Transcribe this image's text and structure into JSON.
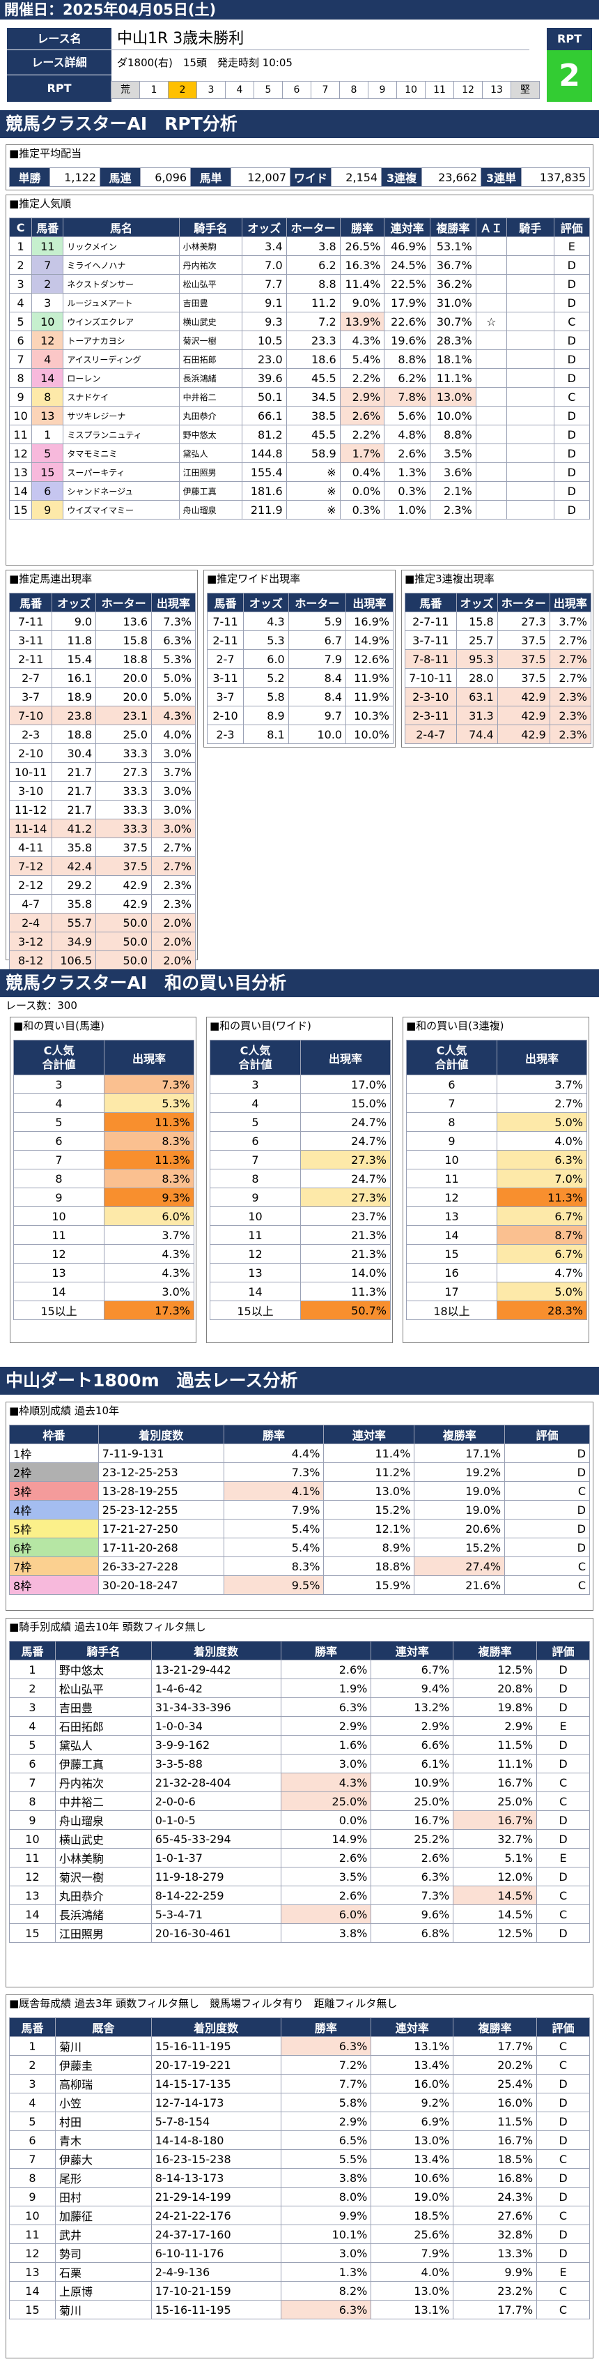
{
  "page": {
    "date": "開催日：2025年04月05日(土)"
  },
  "race": {
    "name_label": "レース名",
    "name": "中山1R 3歳未勝利",
    "detail_label": "レース詳細",
    "detail": "ダ1800(右)　15頭　発走時刻 10:05",
    "rpt_label": "RPT",
    "rpt_header": "RPT",
    "rpt_value": "2",
    "rpt_scale": [
      "荒",
      "1",
      "2",
      "3",
      "4",
      "5",
      "6",
      "7",
      "8",
      "9",
      "10",
      "11",
      "12",
      "13",
      "堅"
    ]
  },
  "sec1": {
    "title": "競馬クラスターAI　RPT分析",
    "avg": {
      "title": "■推定平均配当",
      "items": [
        {
          "k": "単勝",
          "v": "1,122"
        },
        {
          "k": "馬連",
          "v": "6,096"
        },
        {
          "k": "馬単",
          "v": "12,007"
        },
        {
          "k": "ワイド",
          "v": "2,154"
        },
        {
          "k": "3連複",
          "v": "23,662"
        },
        {
          "k": "3連単",
          "v": "137,835"
        }
      ]
    },
    "pop": {
      "title": "■推定人気順",
      "headers": [
        "C",
        "馬番",
        "馬名",
        "騎手名",
        "オッズ",
        "ホーター",
        "勝率",
        "連対率",
        "複勝率",
        "ＡＩ",
        "騎手",
        "評価"
      ],
      "rows": [
        [
          "1",
          "11",
          "リックメイン",
          "小林美駒",
          "3.4",
          "3.8",
          "26.5%",
          "46.9%",
          "53.1%",
          "",
          "",
          "E"
        ],
        [
          "2",
          "7",
          "ミライヘノハナ",
          "丹内祐次",
          "7.0",
          "6.2",
          "16.3%",
          "24.5%",
          "36.7%",
          "",
          "",
          "D"
        ],
        [
          "3",
          "2",
          "ネクストダンサー",
          "松山弘平",
          "7.7",
          "8.8",
          "11.4%",
          "22.5%",
          "36.2%",
          "",
          "",
          "D"
        ],
        [
          "4",
          "3",
          "ルージュメアート",
          "吉田豊",
          "9.1",
          "11.2",
          "9.0%",
          "17.9%",
          "31.0%",
          "",
          "",
          "D"
        ],
        [
          "5",
          "10",
          "ウインズエクレア",
          "横山武史",
          "9.3",
          "7.2",
          "13.9%",
          "22.6%",
          "30.7%",
          "☆",
          "",
          "C"
        ],
        [
          "6",
          "12",
          "トーアナカヨシ",
          "菊沢一樹",
          "10.5",
          "23.3",
          "4.3%",
          "19.6%",
          "28.3%",
          "",
          "",
          "D"
        ],
        [
          "7",
          "4",
          "アイスリーディング",
          "石田拓郎",
          "23.0",
          "18.6",
          "5.4%",
          "8.8%",
          "18.1%",
          "",
          "",
          "D"
        ],
        [
          "8",
          "14",
          "ローレン",
          "長浜鴻緒",
          "39.6",
          "45.5",
          "2.2%",
          "6.2%",
          "11.1%",
          "",
          "",
          "D"
        ],
        [
          "9",
          "8",
          "スナドケイ",
          "中井裕二",
          "50.1",
          "34.5",
          "2.9%",
          "7.8%",
          "13.0%",
          "",
          "",
          "C"
        ],
        [
          "10",
          "13",
          "サツキレジーナ",
          "丸田恭介",
          "66.1",
          "38.5",
          "2.6%",
          "5.6%",
          "10.0%",
          "",
          "",
          "D"
        ],
        [
          "11",
          "1",
          "ミスプランニュティ",
          "野中悠太",
          "81.2",
          "45.5",
          "2.2%",
          "4.8%",
          "8.8%",
          "",
          "",
          "D"
        ],
        [
          "12",
          "5",
          "タマモミニミ",
          "黛弘人",
          "144.8",
          "58.9",
          "1.7%",
          "2.6%",
          "3.5%",
          "",
          "",
          "D"
        ],
        [
          "13",
          "15",
          "スーパーキティ",
          "江田照男",
          "155.4",
          "※",
          "0.4%",
          "1.3%",
          "3.6%",
          "",
          "",
          "D"
        ],
        [
          "14",
          "6",
          "シャンドネージュ",
          "伊藤工真",
          "181.6",
          "※",
          "0.0%",
          "0.3%",
          "2.1%",
          "",
          "",
          "D"
        ],
        [
          "15",
          "9",
          "ウイズマイマミー",
          "舟山瑠泉",
          "211.9",
          "※",
          "0.3%",
          "1.0%",
          "2.3%",
          "",
          "",
          "D"
        ]
      ]
    },
    "umaren": {
      "title": "■推定馬連出現率",
      "headers": [
        "馬番",
        "オッズ",
        "ホーター",
        "出現率"
      ],
      "rows": [
        [
          "7-11",
          "9.0",
          "13.6",
          "7.3%"
        ],
        [
          "3-11",
          "11.8",
          "15.8",
          "6.3%"
        ],
        [
          "2-11",
          "15.4",
          "18.8",
          "5.3%"
        ],
        [
          "2-7",
          "16.1",
          "20.0",
          "5.0%"
        ],
        [
          "3-7",
          "18.9",
          "20.0",
          "5.0%"
        ],
        [
          "7-10",
          "23.8",
          "23.1",
          "4.3%"
        ],
        [
          "2-3",
          "18.8",
          "25.0",
          "4.0%"
        ],
        [
          "2-10",
          "30.4",
          "33.3",
          "3.0%"
        ],
        [
          "10-11",
          "21.7",
          "27.3",
          "3.7%"
        ],
        [
          "3-10",
          "21.7",
          "33.3",
          "3.0%"
        ],
        [
          "11-12",
          "21.7",
          "33.3",
          "3.0%"
        ],
        [
          "11-14",
          "41.2",
          "33.3",
          "3.0%"
        ],
        [
          "4-11",
          "35.8",
          "37.5",
          "2.7%"
        ],
        [
          "7-12",
          "42.4",
          "37.5",
          "2.7%"
        ],
        [
          "2-12",
          "29.2",
          "42.9",
          "2.3%"
        ],
        [
          "4-7",
          "35.8",
          "42.9",
          "2.3%"
        ],
        [
          "2-4",
          "55.7",
          "50.0",
          "2.0%"
        ],
        [
          "3-12",
          "34.9",
          "50.0",
          "2.0%"
        ],
        [
          "8-12",
          "106.5",
          "50.0",
          "2.0%"
        ]
      ]
    },
    "wide": {
      "title": "■推定ワイド出現率",
      "headers": [
        "馬番",
        "オッズ",
        "ホーター",
        "出現率"
      ],
      "rows": [
        [
          "7-11",
          "4.3",
          "5.9",
          "16.9%"
        ],
        [
          "2-11",
          "5.3",
          "6.7",
          "14.9%"
        ],
        [
          "2-7",
          "6.0",
          "7.9",
          "12.6%"
        ],
        [
          "3-11",
          "5.2",
          "8.4",
          "11.9%"
        ],
        [
          "3-7",
          "5.8",
          "8.4",
          "11.9%"
        ],
        [
          "2-10",
          "8.9",
          "9.7",
          "10.3%"
        ],
        [
          "2-3",
          "8.1",
          "10.0",
          "10.0%"
        ]
      ]
    },
    "sanren": {
      "title": "■推定3連複出現率",
      "headers": [
        "馬番",
        "オッズ",
        "ホーター",
        "出現率"
      ],
      "rows": [
        [
          "2-7-11",
          "15.8",
          "27.3",
          "3.7%"
        ],
        [
          "3-7-11",
          "25.7",
          "37.5",
          "2.7%"
        ],
        [
          "7-8-11",
          "95.3",
          "37.5",
          "2.7%"
        ],
        [
          "7-10-11",
          "28.0",
          "37.5",
          "2.7%"
        ],
        [
          "2-3-10",
          "63.1",
          "42.9",
          "2.3%"
        ],
        [
          "2-3-11",
          "31.3",
          "42.9",
          "2.3%"
        ],
        [
          "2-4-7",
          "74.4",
          "42.9",
          "2.3%"
        ]
      ]
    }
  },
  "sec2": {
    "title": "競馬クラスターAI　和の買い目分析",
    "count": "レース数：300",
    "t1": {
      "title": "■和の買い目(馬連)",
      "h1": "C人気",
      "h2": "合計値",
      "h3": "出現率",
      "rows": [
        [
          "3",
          "7.3%"
        ],
        [
          "4",
          "5.3%"
        ],
        [
          "5",
          "11.3%"
        ],
        [
          "6",
          "8.3%"
        ],
        [
          "7",
          "11.3%"
        ],
        [
          "8",
          "8.3%"
        ],
        [
          "9",
          "9.3%"
        ],
        [
          "10",
          "6.0%"
        ],
        [
          "11",
          "3.7%"
        ],
        [
          "12",
          "4.3%"
        ],
        [
          "13",
          "4.3%"
        ],
        [
          "14",
          "3.0%"
        ],
        [
          "15以上",
          "17.3%"
        ]
      ]
    },
    "t2": {
      "title": "■和の買い目(ワイド)",
      "h1": "C人気",
      "h2": "合計値",
      "h3": "出現率",
      "rows": [
        [
          "3",
          "17.0%"
        ],
        [
          "4",
          "15.0%"
        ],
        [
          "5",
          "24.7%"
        ],
        [
          "6",
          "24.7%"
        ],
        [
          "7",
          "27.3%"
        ],
        [
          "8",
          "24.7%"
        ],
        [
          "9",
          "27.3%"
        ],
        [
          "10",
          "23.7%"
        ],
        [
          "11",
          "21.3%"
        ],
        [
          "12",
          "21.3%"
        ],
        [
          "13",
          "14.0%"
        ],
        [
          "14",
          "11.3%"
        ],
        [
          "15以上",
          "50.7%"
        ]
      ]
    },
    "t3": {
      "title": "■和の買い目(3連複)",
      "h1": "C人気",
      "h2": "合計値",
      "h3": "出現率",
      "rows": [
        [
          "6",
          "3.7%"
        ],
        [
          "7",
          "2.7%"
        ],
        [
          "8",
          "5.0%"
        ],
        [
          "9",
          "4.0%"
        ],
        [
          "10",
          "6.3%"
        ],
        [
          "11",
          "7.0%"
        ],
        [
          "12",
          "11.3%"
        ],
        [
          "13",
          "6.7%"
        ],
        [
          "14",
          "8.7%"
        ],
        [
          "15",
          "6.7%"
        ],
        [
          "16",
          "4.7%"
        ],
        [
          "17",
          "5.0%"
        ],
        [
          "18以上",
          "28.3%"
        ]
      ]
    }
  },
  "sec3": {
    "title": "中山ダート1800m　過去レース分析",
    "waku": {
      "title": "■枠順別成績 過去10年",
      "headers": [
        "枠番",
        "着別度数",
        "勝率",
        "連対率",
        "複勝率",
        "評価"
      ],
      "rows": [
        [
          "1枠",
          "7-11-9-131",
          "4.4%",
          "11.4%",
          "17.1%",
          "D"
        ],
        [
          "2枠",
          "23-12-25-253",
          "7.3%",
          "11.2%",
          "19.2%",
          "D"
        ],
        [
          "3枠",
          "13-28-19-255",
          "4.1%",
          "13.0%",
          "19.0%",
          "C"
        ],
        [
          "4枠",
          "25-23-12-255",
          "7.9%",
          "15.2%",
          "19.0%",
          "D"
        ],
        [
          "5枠",
          "17-21-27-250",
          "5.4%",
          "12.1%",
          "20.6%",
          "D"
        ],
        [
          "6枠",
          "17-11-20-268",
          "5.4%",
          "8.9%",
          "15.2%",
          "D"
        ],
        [
          "7枠",
          "26-33-27-228",
          "8.3%",
          "18.8%",
          "27.4%",
          "C"
        ],
        [
          "8枠",
          "30-20-18-247",
          "9.5%",
          "15.9%",
          "21.6%",
          "C"
        ]
      ]
    },
    "jockey": {
      "title": "■騎手別成績 過去10年 頭数フィルタ無し",
      "headers": [
        "馬番",
        "騎手名",
        "着別度数",
        "勝率",
        "連対率",
        "複勝率",
        "評価"
      ],
      "rows": [
        [
          "1",
          "野中悠太",
          "13-21-29-442",
          "2.6%",
          "6.7%",
          "12.5%",
          "D"
        ],
        [
          "2",
          "松山弘平",
          "1-4-6-42",
          "1.9%",
          "9.4%",
          "20.8%",
          "D"
        ],
        [
          "3",
          "吉田豊",
          "31-34-33-396",
          "6.3%",
          "13.2%",
          "19.8%",
          "D"
        ],
        [
          "4",
          "石田拓郎",
          "1-0-0-34",
          "2.9%",
          "2.9%",
          "2.9%",
          "E"
        ],
        [
          "5",
          "黛弘人",
          "3-9-9-162",
          "1.6%",
          "6.6%",
          "11.5%",
          "D"
        ],
        [
          "6",
          "伊藤工真",
          "3-3-5-88",
          "3.0%",
          "6.1%",
          "11.1%",
          "D"
        ],
        [
          "7",
          "丹内祐次",
          "21-32-28-404",
          "4.3%",
          "10.9%",
          "16.7%",
          "C"
        ],
        [
          "8",
          "中井裕二",
          "2-0-0-6",
          "25.0%",
          "25.0%",
          "25.0%",
          "C"
        ],
        [
          "9",
          "舟山瑠泉",
          "0-1-0-5",
          "0.0%",
          "16.7%",
          "16.7%",
          "D"
        ],
        [
          "10",
          "横山武史",
          "65-45-33-294",
          "14.9%",
          "25.2%",
          "32.7%",
          "D"
        ],
        [
          "11",
          "小林美駒",
          "1-0-1-37",
          "2.6%",
          "2.6%",
          "5.1%",
          "E"
        ],
        [
          "12",
          "菊沢一樹",
          "11-9-18-279",
          "3.5%",
          "6.3%",
          "12.0%",
          "D"
        ],
        [
          "13",
          "丸田恭介",
          "8-14-22-259",
          "2.6%",
          "7.3%",
          "14.5%",
          "C"
        ],
        [
          "14",
          "長浜鴻緒",
          "5-3-4-71",
          "6.0%",
          "9.6%",
          "14.5%",
          "C"
        ],
        [
          "15",
          "江田照男",
          "20-16-30-461",
          "3.8%",
          "6.8%",
          "12.5%",
          "D"
        ]
      ]
    },
    "trainer": {
      "title": "■厩舎毎成績 過去3年 頭数フィルタ無し　競馬場フィルタ有り　距離フィルタ無し",
      "headers": [
        "馬番",
        "厩舎",
        "着別度数",
        "勝率",
        "連対率",
        "複勝率",
        "評価"
      ],
      "rows": [
        [
          "1",
          "菊川",
          "15-16-11-195",
          "6.3%",
          "13.1%",
          "17.7%",
          "C"
        ],
        [
          "2",
          "伊藤圭",
          "20-17-19-221",
          "7.2%",
          "13.4%",
          "20.2%",
          "C"
        ],
        [
          "3",
          "高柳瑞",
          "14-15-17-135",
          "7.7%",
          "16.0%",
          "25.4%",
          "D"
        ],
        [
          "4",
          "小笠",
          "12-7-14-173",
          "5.8%",
          "9.2%",
          "16.0%",
          "D"
        ],
        [
          "5",
          "村田",
          "5-7-8-154",
          "2.9%",
          "6.9%",
          "11.5%",
          "D"
        ],
        [
          "6",
          "青木",
          "14-14-8-180",
          "6.5%",
          "13.0%",
          "16.7%",
          "D"
        ],
        [
          "7",
          "伊藤大",
          "16-23-15-238",
          "5.5%",
          "13.4%",
          "18.5%",
          "C"
        ],
        [
          "8",
          "尾形",
          "8-14-13-173",
          "3.8%",
          "10.6%",
          "16.8%",
          "D"
        ],
        [
          "9",
          "田村",
          "21-29-14-199",
          "8.0%",
          "19.0%",
          "24.3%",
          "D"
        ],
        [
          "10",
          "加藤征",
          "24-21-22-176",
          "9.9%",
          "18.5%",
          "27.6%",
          "C"
        ],
        [
          "11",
          "武井",
          "24-37-17-160",
          "10.1%",
          "25.6%",
          "32.8%",
          "D"
        ],
        [
          "12",
          "勢司",
          "6-10-11-176",
          "3.0%",
          "7.9%",
          "13.3%",
          "D"
        ],
        [
          "13",
          "石栗",
          "2-4-9-136",
          "1.3%",
          "4.0%",
          "9.9%",
          "E"
        ],
        [
          "14",
          "上原博",
          "17-10-21-159",
          "8.2%",
          "13.0%",
          "23.2%",
          "C"
        ],
        [
          "15",
          "菊川",
          "15-16-11-195",
          "6.3%",
          "13.1%",
          "17.7%",
          "C"
        ]
      ]
    }
  },
  "colors": {
    "navy": "#1f3864",
    "rpt_green": "#33cc33",
    "rpt_selected": "#ffc000",
    "waku": [
      "#ffffff",
      "#333333",
      "#e23a3a",
      "#4a7fd4",
      "#f2dc00",
      "#36a835",
      "#f4a21f",
      "#f278b8"
    ]
  }
}
